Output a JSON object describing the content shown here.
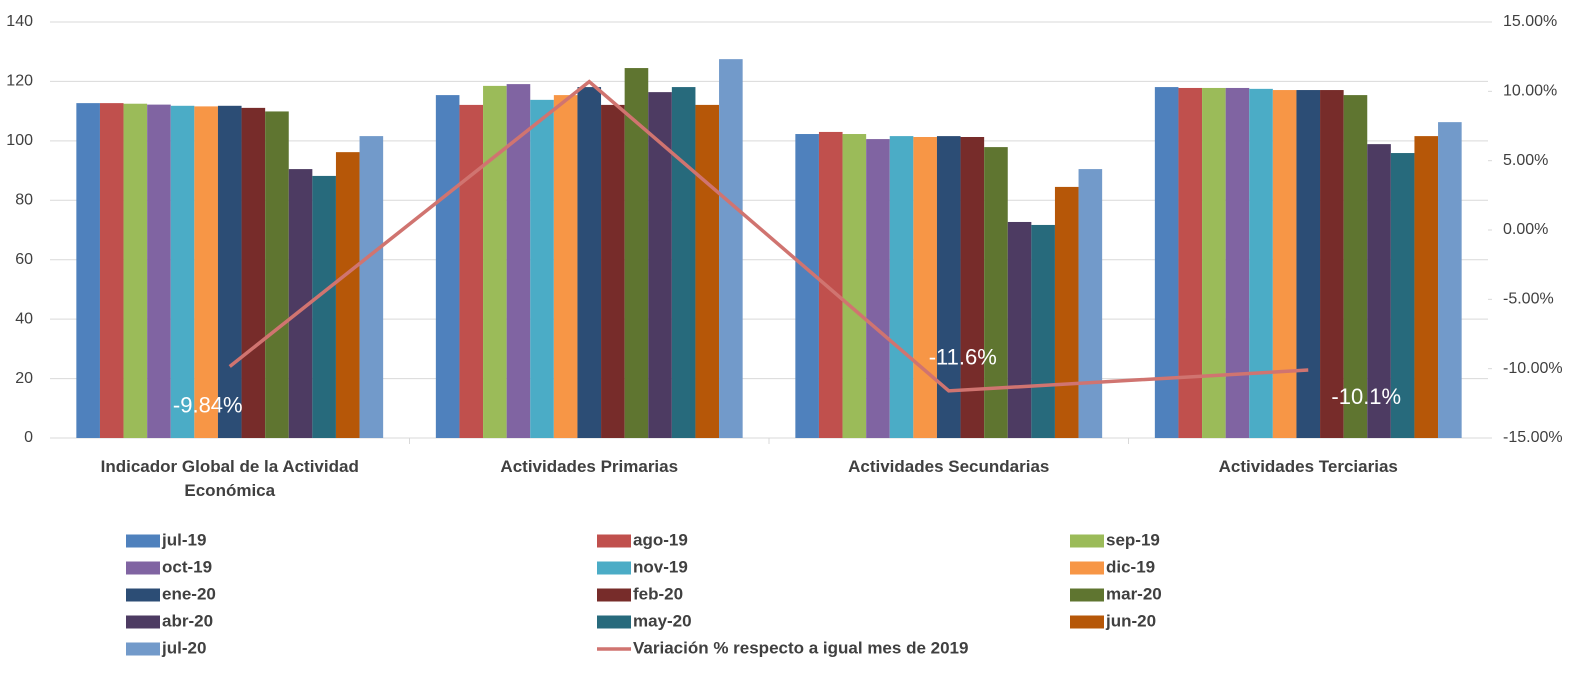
{
  "chart_data": {
    "type": "bar",
    "categories": [
      "Indicador Global de la Actividad Económica",
      "Actividades Primarias",
      "Actividades Secundarias",
      "Actividades Terciarias"
    ],
    "ylim": [
      0,
      140
    ],
    "yticks": [
      0,
      20,
      40,
      60,
      80,
      100,
      120,
      140
    ],
    "y2lim": [
      -15,
      15
    ],
    "y2ticks": [
      {
        "value": -15,
        "label": "-15.00%"
      },
      {
        "value": -10,
        "label": "-10.00%"
      },
      {
        "value": -5,
        "label": "-5.00%"
      },
      {
        "value": 0,
        "label": "0.00%"
      },
      {
        "value": 5,
        "label": "5.00%"
      },
      {
        "value": 10,
        "label": "10.00%"
      },
      {
        "value": 15,
        "label": "15.00%"
      }
    ],
    "grid": true,
    "series": [
      {
        "name": "jul-19",
        "color": "#4f81bd",
        "values": [
          112.7,
          115.4,
          102.3,
          118.1
        ]
      },
      {
        "name": "ago-19",
        "color": "#c0504d",
        "values": [
          112.7,
          112.1,
          103.0,
          117.8
        ]
      },
      {
        "name": "sep-19",
        "color": "#9bbb59",
        "values": [
          112.5,
          118.5,
          102.3,
          117.8
        ]
      },
      {
        "name": "oct-19",
        "color": "#8064a2",
        "values": [
          112.2,
          119.1,
          100.6,
          117.8
        ]
      },
      {
        "name": "nov-19",
        "color": "#4bacc6",
        "values": [
          111.8,
          113.8,
          101.6,
          117.5
        ]
      },
      {
        "name": "dic-19",
        "color": "#f79646",
        "values": [
          111.6,
          115.4,
          101.3,
          117.1
        ]
      },
      {
        "name": "ene-20",
        "color": "#2c4d75",
        "values": [
          111.8,
          118.1,
          101.6,
          117.1
        ]
      },
      {
        "name": "feb-20",
        "color": "#772c2a",
        "values": [
          111.1,
          112.1,
          101.3,
          117.1
        ]
      },
      {
        "name": "mar-20",
        "color": "#5f7530",
        "values": [
          109.9,
          124.5,
          97.9,
          115.4
        ]
      },
      {
        "name": "abr-20",
        "color": "#4d3b62",
        "values": [
          90.5,
          116.4,
          72.7,
          98.9
        ]
      },
      {
        "name": "may-20",
        "color": "#276a7c",
        "values": [
          88.2,
          118.1,
          71.7,
          95.9
        ]
      },
      {
        "name": "jun-20",
        "color": "#b65708",
        "values": [
          96.2,
          112.1,
          84.5,
          101.6
        ]
      },
      {
        "name": "jul-20",
        "color": "#729aca",
        "values": [
          101.6,
          127.5,
          90.5,
          106.3
        ]
      },
      {
        "name": "Variación % respecto a igual mes de 2019",
        "type": "line",
        "axis": "y2",
        "color": "#d07470",
        "values": [
          -9.84,
          10.7,
          -11.6,
          -10.1
        ],
        "value_labels": [
          "-9.84%",
          "10.7%",
          "-11.6%",
          "-10.1%"
        ]
      }
    ]
  }
}
